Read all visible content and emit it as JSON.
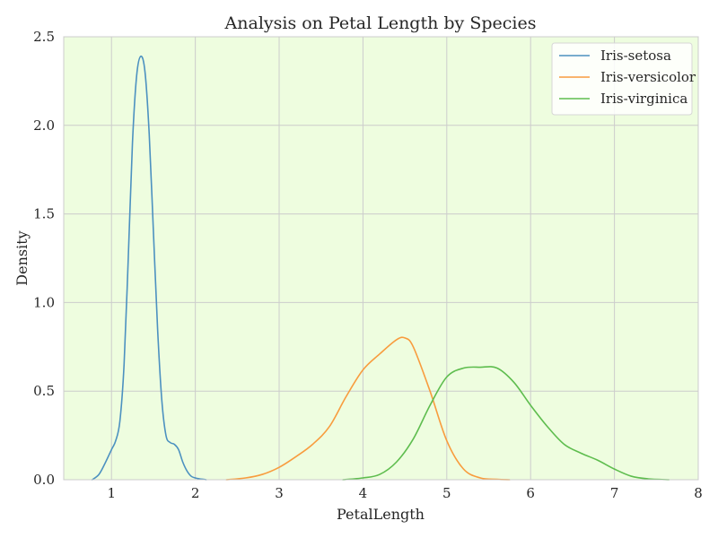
{
  "chart_data": {
    "type": "line",
    "title": "Analysis on Petal Length by Species",
    "xlabel": "PetalLength",
    "ylabel": "Density",
    "xlim": [
      0.43,
      8.0
    ],
    "ylim": [
      0,
      2.5
    ],
    "xticks": [
      1,
      2,
      3,
      4,
      5,
      6,
      7,
      8
    ],
    "yticks": [
      0.0,
      0.5,
      1.0,
      1.5,
      2.0,
      2.5
    ],
    "xtick_labels": [
      "1",
      "2",
      "3",
      "4",
      "5",
      "6",
      "7",
      "8"
    ],
    "ytick_labels": [
      "0.0",
      "0.5",
      "1.0",
      "1.5",
      "2.0",
      "2.5"
    ],
    "grid": true,
    "background_color": "#eefddf",
    "legend_position": "top-right",
    "series": [
      {
        "name": "Iris-setosa",
        "color": "#4c91c0",
        "x": [
          0.77,
          0.85,
          0.92,
          1.0,
          1.05,
          1.1,
          1.15,
          1.2,
          1.25,
          1.3,
          1.35,
          1.4,
          1.45,
          1.5,
          1.55,
          1.6,
          1.65,
          1.7,
          1.75,
          1.8,
          1.85,
          1.9,
          1.95,
          2.0,
          2.05,
          2.1,
          2.13
        ],
        "y": [
          0.0,
          0.03,
          0.09,
          0.17,
          0.22,
          0.33,
          0.65,
          1.25,
          1.9,
          2.28,
          2.39,
          2.3,
          1.95,
          1.4,
          0.85,
          0.45,
          0.25,
          0.21,
          0.2,
          0.17,
          0.1,
          0.05,
          0.02,
          0.01,
          0.005,
          0.002,
          0.0
        ]
      },
      {
        "name": "Iris-versicolor",
        "color": "#f89c3e",
        "x": [
          2.37,
          2.6,
          2.8,
          3.0,
          3.2,
          3.4,
          3.6,
          3.8,
          4.0,
          4.2,
          4.4,
          4.5,
          4.6,
          4.8,
          5.0,
          5.2,
          5.4,
          5.6,
          5.75
        ],
        "y": [
          0.0,
          0.01,
          0.03,
          0.07,
          0.13,
          0.2,
          0.3,
          0.47,
          0.62,
          0.71,
          0.79,
          0.8,
          0.75,
          0.5,
          0.22,
          0.06,
          0.01,
          0.002,
          0.0
        ]
      },
      {
        "name": "Iris-virginica",
        "color": "#5ebd4e",
        "x": [
          3.76,
          4.0,
          4.2,
          4.4,
          4.6,
          4.8,
          5.0,
          5.2,
          5.4,
          5.6,
          5.8,
          6.0,
          6.2,
          6.4,
          6.6,
          6.8,
          7.0,
          7.2,
          7.4,
          7.65
        ],
        "y": [
          0.0,
          0.01,
          0.03,
          0.1,
          0.23,
          0.42,
          0.58,
          0.63,
          0.635,
          0.63,
          0.55,
          0.42,
          0.3,
          0.2,
          0.15,
          0.11,
          0.06,
          0.02,
          0.005,
          0.0
        ]
      }
    ]
  }
}
